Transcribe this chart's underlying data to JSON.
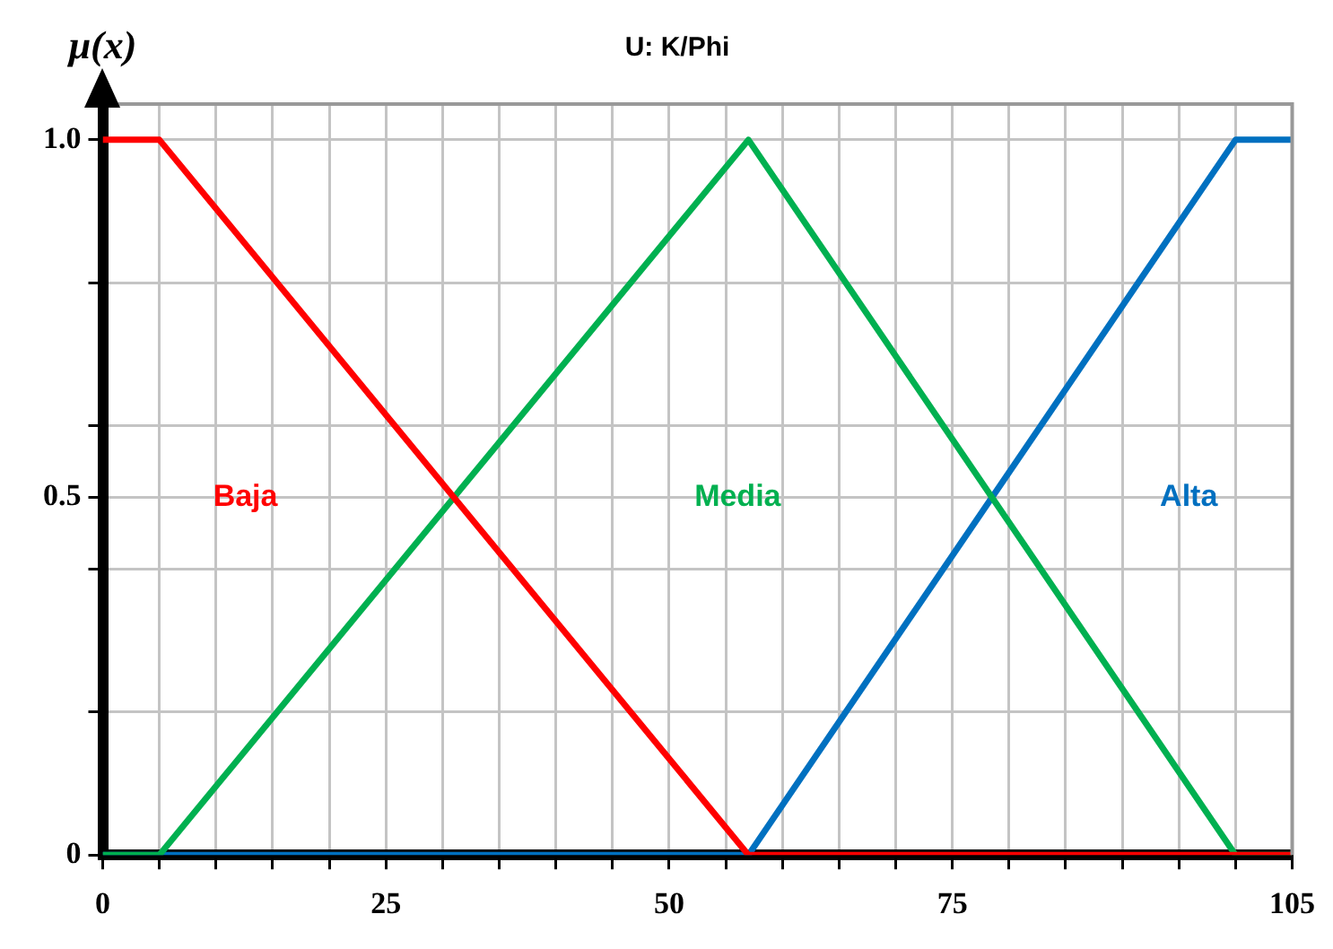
{
  "chart_data": {
    "type": "line",
    "title": "U: K/Phi",
    "ylabel": "μ(x)",
    "series": [
      {
        "name": "Baja",
        "color": "#ff0000",
        "x": [
          0,
          5,
          57,
          105
        ],
        "values": [
          1,
          1,
          0,
          0
        ]
      },
      {
        "name": "Media",
        "color": "#00b050",
        "x": [
          0,
          5,
          57,
          100,
          105
        ],
        "values": [
          0,
          0,
          1,
          0,
          0
        ]
      },
      {
        "name": "Alta",
        "color": "#0070c0",
        "x": [
          0,
          57,
          100,
          105
        ],
        "values": [
          0,
          0,
          1,
          1
        ]
      }
    ],
    "xlim": [
      0,
      105
    ],
    "xticks": [
      0,
      {
        "value": 5,
        "label": null
      },
      {
        "value": 10,
        "label": null
      },
      {
        "value": 15,
        "label": null
      },
      {
        "value": 20,
        "label": null
      },
      25,
      {
        "value": 30,
        "label": null
      },
      {
        "value": 35,
        "label": null
      },
      {
        "value": 40,
        "label": null
      },
      {
        "value": 45,
        "label": null
      },
      50,
      {
        "value": 55,
        "label": null
      },
      {
        "value": 60,
        "label": null
      },
      {
        "value": 65,
        "label": null
      },
      {
        "value": 70,
        "label": null
      },
      75,
      {
        "value": 80,
        "label": null
      },
      {
        "value": 85,
        "label": null
      },
      {
        "value": 90,
        "label": null
      },
      {
        "value": 95,
        "label": null
      },
      {
        "value": 100,
        "label": null
      },
      105
    ],
    "ylim": [
      0,
      1.05
    ],
    "yticks": [
      0,
      {
        "value": 0.2,
        "label": null
      },
      {
        "value": 0.4,
        "label": null
      },
      0.5,
      {
        "value": 0.6,
        "label": null
      },
      {
        "value": 0.8,
        "label": null
      },
      {
        "value": 1,
        "label": "1.0"
      }
    ],
    "grid": true,
    "legend": false,
    "marker": "none",
    "line_style": "solid"
  }
}
